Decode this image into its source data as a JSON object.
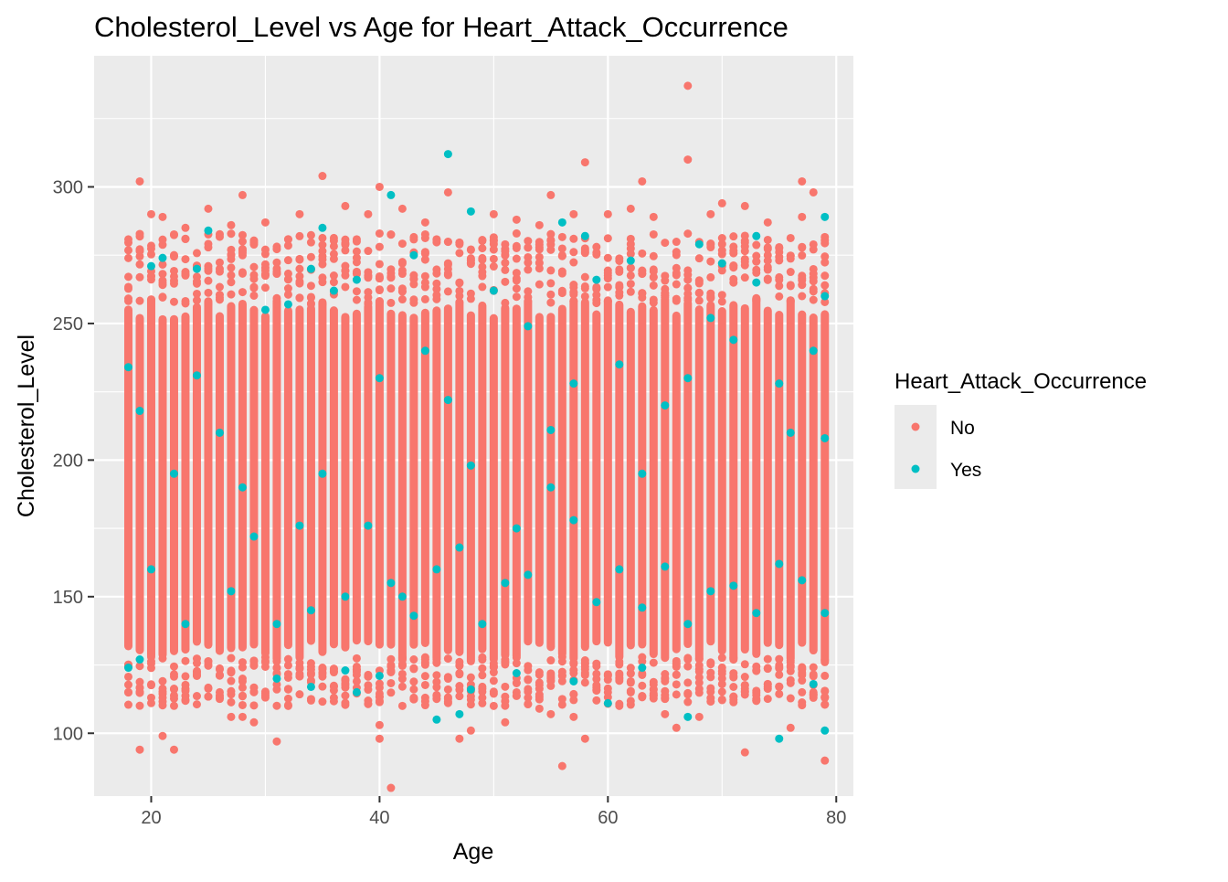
{
  "chart_data": {
    "type": "scatter",
    "title": "Cholesterol_Level vs Age for Heart_Attack_Occurrence",
    "xlabel": "Age",
    "ylabel": "Cholesterol_Level",
    "xlim": [
      15,
      81.5
    ],
    "ylim": [
      77,
      348
    ],
    "x_ticks": [
      20,
      40,
      60,
      80
    ],
    "y_ticks": [
      100,
      150,
      200,
      250,
      300
    ],
    "x_tick_labels": [
      "20",
      "40",
      "60",
      "80"
    ],
    "y_tick_labels": [
      "100",
      "150",
      "200",
      "250",
      "300"
    ],
    "grid": true,
    "legend": {
      "title": "Heart_Attack_Occurrence",
      "position": "right",
      "entries": [
        {
          "label": "No",
          "color": "#F8766D"
        },
        {
          "label": "Yes",
          "color": "#00BFC4"
        }
      ]
    },
    "colors": {
      "panel": "#EBEBEB",
      "grid": "#FFFFFF",
      "no": "#F8766D",
      "yes": "#00BFC4"
    },
    "age_range": [
      18,
      79
    ],
    "core_band": {
      "min": 130,
      "max": 255
    },
    "series": [
      {
        "name": "No",
        "color": "#F8766D",
        "points": [
          [
            19,
            302
          ],
          [
            19,
            94
          ],
          [
            21,
            99
          ],
          [
            22,
            94
          ],
          [
            28,
            297
          ],
          [
            31,
            97
          ],
          [
            35,
            304
          ],
          [
            40,
            300
          ],
          [
            40,
            103
          ],
          [
            40,
            98
          ],
          [
            41,
            80
          ],
          [
            46,
            298
          ],
          [
            47,
            98
          ],
          [
            48,
            101
          ],
          [
            55,
            297
          ],
          [
            56,
            88
          ],
          [
            58,
            309
          ],
          [
            58,
            98
          ],
          [
            63,
            302
          ],
          [
            67,
            337
          ],
          [
            67,
            310
          ],
          [
            66,
            102
          ],
          [
            72,
            93
          ],
          [
            77,
            302
          ],
          [
            78,
            298
          ],
          [
            79,
            90
          ],
          [
            79,
            113
          ],
          [
            76,
            102
          ],
          [
            70,
            294
          ],
          [
            72,
            293
          ],
          [
            20,
            290
          ],
          [
            21,
            289
          ],
          [
            23,
            285
          ],
          [
            25,
            292
          ],
          [
            27,
            286
          ],
          [
            30,
            287
          ],
          [
            33,
            290
          ],
          [
            37,
            293
          ],
          [
            39,
            290
          ],
          [
            42,
            292
          ],
          [
            44,
            287
          ],
          [
            50,
            290
          ],
          [
            52,
            288
          ],
          [
            54,
            286
          ],
          [
            57,
            290
          ],
          [
            60,
            290
          ],
          [
            62,
            292
          ],
          [
            64,
            289
          ],
          [
            69,
            290
          ],
          [
            74,
            287
          ],
          [
            77,
            289
          ],
          [
            24,
            121
          ],
          [
            26,
            115
          ],
          [
            27,
            106
          ],
          [
            28,
            106
          ],
          [
            29,
            104
          ],
          [
            32,
            110
          ],
          [
            34,
            112
          ],
          [
            36,
            113
          ],
          [
            38,
            119
          ],
          [
            42,
            110
          ],
          [
            43,
            113
          ],
          [
            44,
            113
          ],
          [
            45,
            114
          ],
          [
            49,
            113
          ],
          [
            50,
            110
          ],
          [
            51,
            104
          ],
          [
            53,
            113
          ],
          [
            54,
            109
          ],
          [
            55,
            107
          ],
          [
            57,
            106
          ],
          [
            59,
            116
          ],
          [
            61,
            110
          ],
          [
            62,
            119
          ],
          [
            64,
            114
          ],
          [
            65,
            107
          ],
          [
            68,
            106
          ],
          [
            70,
            118
          ],
          [
            71,
            121
          ],
          [
            73,
            114
          ],
          [
            75,
            117
          ],
          [
            77,
            115
          ],
          [
            78,
            113
          ]
        ]
      },
      {
        "name": "Yes",
        "color": "#00BFC4",
        "points": [
          [
            41,
            297
          ],
          [
            46,
            312
          ],
          [
            48,
            291
          ],
          [
            56,
            287
          ],
          [
            73,
            282
          ],
          [
            79,
            289
          ],
          [
            25,
            284
          ],
          [
            35,
            285
          ],
          [
            34,
            270
          ],
          [
            43,
            275
          ],
          [
            58,
            282
          ],
          [
            62,
            273
          ],
          [
            68,
            279
          ],
          [
            70,
            272
          ],
          [
            20,
            271
          ],
          [
            21,
            274
          ],
          [
            24,
            270
          ],
          [
            18,
            124
          ],
          [
            19,
            127
          ],
          [
            31,
            120
          ],
          [
            34,
            117
          ],
          [
            37,
            123
          ],
          [
            38,
            115
          ],
          [
            40,
            121
          ],
          [
            45,
            105
          ],
          [
            47,
            107
          ],
          [
            48,
            116
          ],
          [
            52,
            122
          ],
          [
            57,
            119
          ],
          [
            60,
            111
          ],
          [
            67,
            106
          ],
          [
            75,
            98
          ],
          [
            79,
            101
          ],
          [
            78,
            118
          ],
          [
            63,
            124
          ],
          [
            18,
            234
          ],
          [
            19,
            218
          ],
          [
            22,
            195
          ],
          [
            24,
            231
          ],
          [
            26,
            210
          ],
          [
            28,
            190
          ],
          [
            30,
            255
          ],
          [
            32,
            257
          ],
          [
            33,
            176
          ],
          [
            35,
            195
          ],
          [
            36,
            262
          ],
          [
            38,
            266
          ],
          [
            40,
            230
          ],
          [
            42,
            150
          ],
          [
            44,
            240
          ],
          [
            46,
            222
          ],
          [
            48,
            198
          ],
          [
            50,
            262
          ],
          [
            52,
            175
          ],
          [
            53,
            249
          ],
          [
            55,
            211
          ],
          [
            57,
            228
          ],
          [
            59,
            266
          ],
          [
            61,
            235
          ],
          [
            63,
            195
          ],
          [
            65,
            220
          ],
          [
            67,
            230
          ],
          [
            69,
            252
          ],
          [
            71,
            244
          ],
          [
            73,
            265
          ],
          [
            75,
            228
          ],
          [
            76,
            210
          ],
          [
            78,
            240
          ],
          [
            79,
            208
          ],
          [
            79,
            260
          ],
          [
            20,
            160
          ],
          [
            23,
            140
          ],
          [
            27,
            152
          ],
          [
            29,
            172
          ],
          [
            31,
            140
          ],
          [
            34,
            145
          ],
          [
            37,
            150
          ],
          [
            39,
            176
          ],
          [
            41,
            155
          ],
          [
            43,
            143
          ],
          [
            45,
            160
          ],
          [
            47,
            168
          ],
          [
            49,
            140
          ],
          [
            51,
            155
          ],
          [
            53,
            158
          ],
          [
            55,
            190
          ],
          [
            57,
            178
          ],
          [
            59,
            148
          ],
          [
            61,
            160
          ],
          [
            63,
            146
          ],
          [
            65,
            161
          ],
          [
            67,
            140
          ],
          [
            69,
            152
          ],
          [
            71,
            154
          ],
          [
            73,
            144
          ],
          [
            75,
            162
          ],
          [
            77,
            156
          ],
          [
            79,
            144
          ]
        ]
      }
    ]
  }
}
